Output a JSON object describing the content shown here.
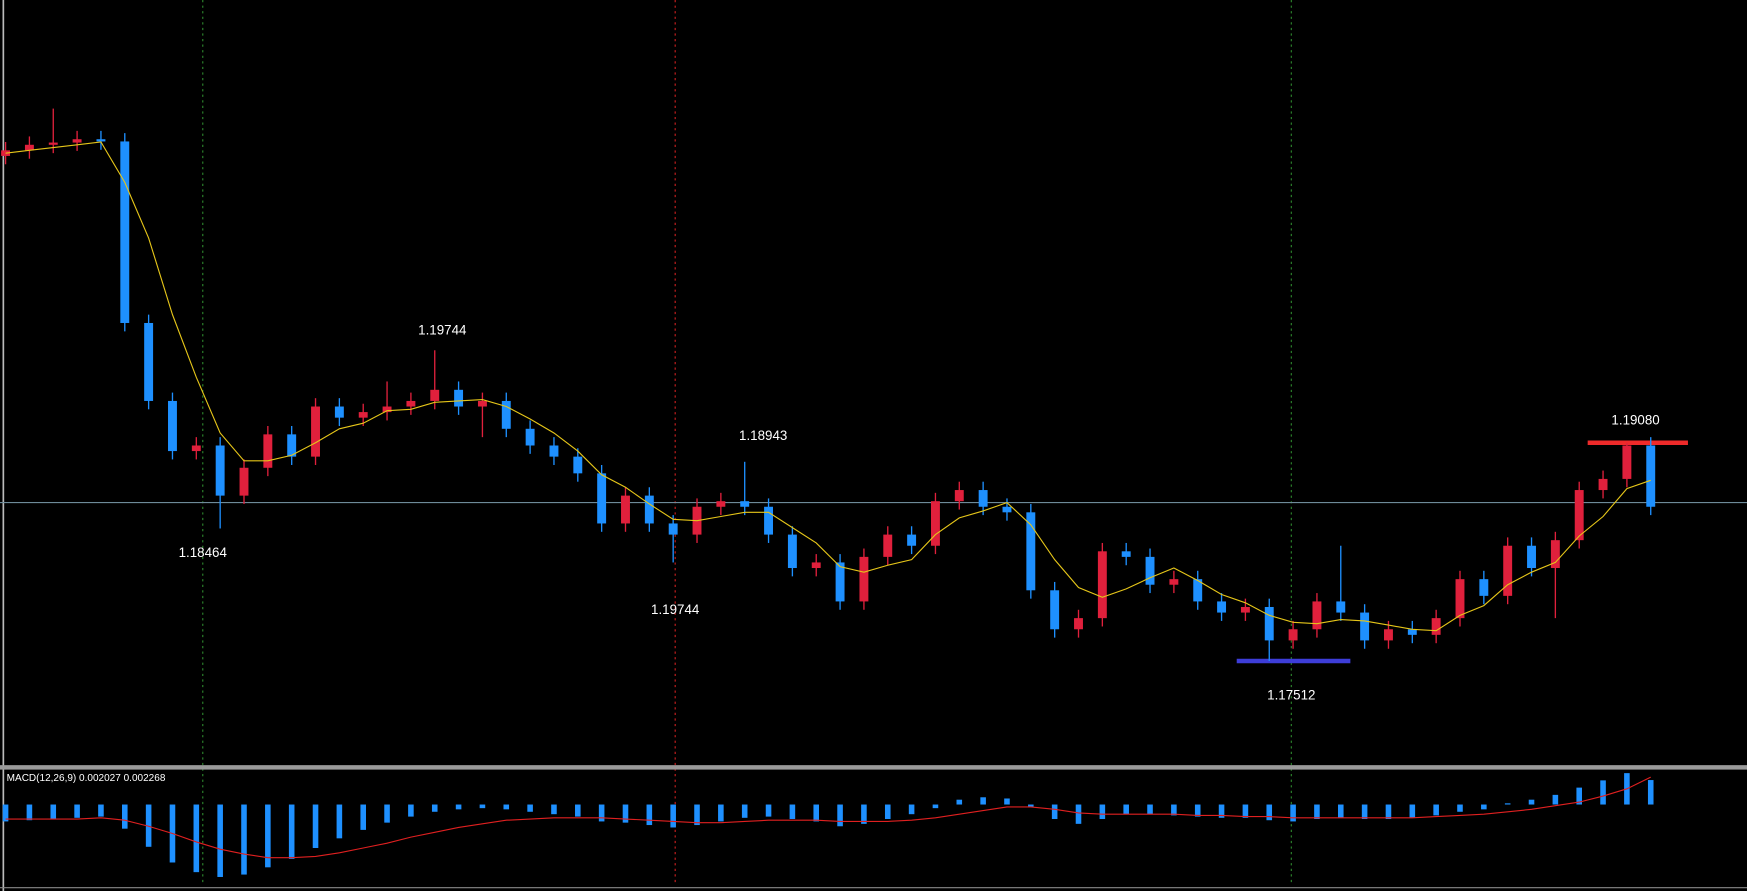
{
  "chart_data": {
    "type": "candlestick",
    "open": [
      1.2114,
      1.2118,
      1.2122,
      1.21236,
      1.2126,
      1.21244,
      1.1994,
      1.1938,
      1.1902,
      1.1906,
      1.187,
      1.189,
      1.1914,
      1.1898,
      1.1934,
      1.1926,
      1.193,
      1.1934,
      1.1938,
      1.1946,
      1.1934,
      1.1938,
      1.1918,
      1.1906,
      1.1898,
      1.1886,
      1.185,
      1.187,
      1.185,
      1.1842,
      1.1862,
      1.1866,
      1.1862,
      1.1842,
      1.1818,
      1.1822,
      1.1794,
      1.1826,
      1.1842,
      1.1834,
      1.1866,
      1.1874,
      1.1862,
      1.1858,
      1.1802,
      1.1774,
      1.1782,
      1.183,
      1.1826,
      1.1806,
      1.181,
      1.1794,
      1.1786,
      1.179,
      1.1766,
      1.1774,
      1.1794,
      1.1786,
      1.1766,
      1.1774,
      1.177,
      1.1782,
      1.181,
      1.1798,
      1.1834,
      1.1818,
      1.1838,
      1.1874,
      1.1882,
      1.1906
    ],
    "high": [
      1.2124,
      1.2128,
      1.2148,
      1.2132,
      1.2132,
      1.21304,
      1.2,
      1.1944,
      1.1912,
      1.1912,
      1.1896,
      1.192,
      1.192,
      1.194,
      1.194,
      1.1936,
      1.1952,
      1.1944,
      1.19744,
      1.1952,
      1.1944,
      1.1944,
      1.1924,
      1.1912,
      1.1904,
      1.1892,
      1.1876,
      1.1876,
      1.1856,
      1.1868,
      1.1872,
      1.18943,
      1.1868,
      1.1848,
      1.1828,
      1.1828,
      1.1832,
      1.1848,
      1.1848,
      1.1872,
      1.188,
      1.188,
      1.1868,
      1.1864,
      1.1808,
      1.1788,
      1.1836,
      1.1836,
      1.1832,
      1.1816,
      1.1816,
      1.18,
      1.1796,
      1.1796,
      1.178,
      1.18,
      1.1834,
      1.1792,
      1.178,
      1.178,
      1.1788,
      1.1816,
      1.1816,
      1.184,
      1.184,
      1.1844,
      1.188,
      1.1888,
      1.1908,
      1.1912
    ],
    "low": [
      1.2108,
      1.2112,
      1.2116,
      1.21176,
      1.21184,
      1.1988,
      1.1932,
      1.1896,
      1.1896,
      1.18464,
      1.1864,
      1.1884,
      1.1892,
      1.1892,
      1.192,
      1.192,
      1.1924,
      1.1928,
      1.1932,
      1.1928,
      1.1912,
      1.1912,
      1.19,
      1.1892,
      1.188,
      1.1844,
      1.1844,
      1.1844,
      1.1822,
      1.1836,
      1.1856,
      1.1856,
      1.1836,
      1.1812,
      1.1812,
      1.1788,
      1.1788,
      1.182,
      1.1828,
      1.1828,
      1.186,
      1.1856,
      1.1852,
      1.1796,
      1.1768,
      1.1768,
      1.1776,
      1.182,
      1.18,
      1.18,
      1.1788,
      1.178,
      1.178,
      1.17512,
      1.176,
      1.1768,
      1.178,
      1.176,
      1.176,
      1.1764,
      1.1764,
      1.1776,
      1.1792,
      1.1792,
      1.1812,
      1.1782,
      1.1832,
      1.1868,
      1.1876,
      1.1856
    ],
    "close": [
      1.2118,
      1.2122,
      1.21236,
      1.2126,
      1.21244,
      1.1994,
      1.1938,
      1.1902,
      1.1906,
      1.187,
      1.189,
      1.1914,
      1.1898,
      1.1934,
      1.1926,
      1.193,
      1.1934,
      1.1938,
      1.1946,
      1.1934,
      1.1938,
      1.1918,
      1.1906,
      1.1898,
      1.1886,
      1.185,
      1.187,
      1.185,
      1.1842,
      1.1862,
      1.1866,
      1.1862,
      1.1842,
      1.1818,
      1.1822,
      1.1794,
      1.1826,
      1.1842,
      1.1834,
      1.1866,
      1.1874,
      1.1862,
      1.1858,
      1.1802,
      1.1774,
      1.1782,
      1.183,
      1.1826,
      1.1806,
      1.181,
      1.1794,
      1.1786,
      1.179,
      1.1766,
      1.1774,
      1.1794,
      1.1786,
      1.1766,
      1.1774,
      1.177,
      1.1782,
      1.181,
      1.1798,
      1.1834,
      1.1818,
      1.1838,
      1.1874,
      1.1882,
      1.1906,
      1.1862
    ],
    "ma": [
      1.2116,
      1.2118,
      1.212,
      1.2122,
      1.2124,
      1.2095,
      1.2055,
      1.2,
      1.1955,
      1.1915,
      1.1895,
      1.1895,
      1.1899,
      1.1908,
      1.1918,
      1.1922,
      1.1931,
      1.1932,
      1.1937,
      1.1938,
      1.1939,
      1.1934,
      1.1925,
      1.1915,
      1.1902,
      1.1885,
      1.1876,
      1.1864,
      1.1853,
      1.1852,
      1.1855,
      1.1858,
      1.1858,
      1.1847,
      1.1836,
      1.1819,
      1.1815,
      1.182,
      1.1824,
      1.1842,
      1.1854,
      1.1859,
      1.1865,
      1.1849,
      1.1824,
      1.1804,
      1.1797,
      1.1803,
      1.1811,
      1.1818,
      1.1809,
      1.1799,
      1.1793,
      1.1784,
      1.1779,
      1.1778,
      1.1781,
      1.178,
      1.1777,
      1.1774,
      1.1773,
      1.1784,
      1.1791,
      1.1806,
      1.1815,
      1.1822,
      1.1841,
      1.1855,
      1.1875,
      1.1881
    ],
    "up_color": "#e0203c",
    "down_color": "#1e90ff",
    "ma_color": "#e6c619",
    "ylim": [
      1.16756,
      1.2226
    ],
    "levels": [
      {
        "value": 1.1908,
        "color": "#ee2a2a"
      },
      {
        "value": 1.17512,
        "color": "#3d3dd8"
      },
      {
        "value": 1.1865,
        "color": "#6d8a99"
      }
    ],
    "indicator": {
      "label": "MACD(12,26,9) 0.002027 0.002268",
      "ylim": [
        -0.0067,
        0.0028
      ],
      "hist_color": "#1e90ff",
      "signal_color": "#e02020",
      "histogram": [
        -0.0014,
        -0.0013,
        -0.0012,
        -0.0011,
        -0.001,
        -0.002,
        -0.0035,
        -0.0048,
        -0.0056,
        -0.006,
        -0.0058,
        -0.0052,
        -0.0045,
        -0.0036,
        -0.0028,
        -0.0021,
        -0.0015,
        -0.001,
        -0.0006,
        -0.0004,
        -0.0003,
        -0.0004,
        -0.0006,
        -0.0008,
        -0.001,
        -0.0014,
        -0.0015,
        -0.0017,
        -0.0019,
        -0.0017,
        -0.0014,
        -0.0011,
        -0.001,
        -0.0012,
        -0.0014,
        -0.0018,
        -0.0016,
        -0.0012,
        -0.0008,
        -0.0003,
        0.0004,
        0.0006,
        0.0005,
        -0.0002,
        -0.0012,
        -0.0016,
        -0.0012,
        -0.0008,
        -0.0008,
        -0.0009,
        -0.001,
        -0.0011,
        -0.0011,
        -0.0013,
        -0.0014,
        -0.0012,
        -0.0011,
        -0.0012,
        -0.0012,
        -0.0011,
        -0.0009,
        -0.0006,
        -0.0004,
        0.0001,
        0.0004,
        0.0008,
        0.0014,
        0.002,
        0.0026,
        0.002027
      ],
      "signal": [
        -0.0012,
        -0.0012,
        -0.0012,
        -0.0012,
        -0.0011,
        -0.0013,
        -0.0018,
        -0.0024,
        -0.0031,
        -0.0037,
        -0.0041,
        -0.0044,
        -0.0044,
        -0.0043,
        -0.004,
        -0.0036,
        -0.0032,
        -0.0027,
        -0.0023,
        -0.0019,
        -0.0016,
        -0.0013,
        -0.0012,
        -0.0011,
        -0.0011,
        -0.0011,
        -0.0012,
        -0.0013,
        -0.0014,
        -0.0015,
        -0.0015,
        -0.0014,
        -0.0013,
        -0.0013,
        -0.0013,
        -0.0014,
        -0.0014,
        -0.0014,
        -0.0013,
        -0.0011,
        -0.0008,
        -0.0005,
        -0.0002,
        -0.0002,
        -0.0004,
        -0.0007,
        -0.0008,
        -0.0008,
        -0.0008,
        -0.0008,
        -0.0009,
        -0.0009,
        -0.001,
        -0.001,
        -0.0011,
        -0.0011,
        -0.0011,
        -0.0011,
        -0.0011,
        -0.0011,
        -0.001,
        -0.0009,
        -0.0008,
        -0.0006,
        -0.0004,
        -0.0001,
        0.0002,
        0.0007,
        0.0013,
        0.002268
      ]
    },
    "annotations": [
      "1.19744",
      "1.18464",
      "1.19744",
      "1.18943",
      "1.17512",
      "1.19080"
    ]
  }
}
